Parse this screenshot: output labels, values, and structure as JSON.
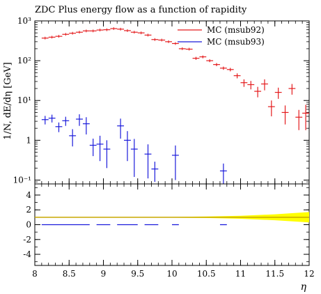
{
  "chart_data": {
    "type": "scatter",
    "title": "ZDC Plus energy flow as a function of rapidity",
    "xlabel": "η",
    "ylabel": "1/N, dE/dη [GeV]",
    "xlim": [
      8,
      12
    ],
    "ylim": [
      0.08,
      1000
    ],
    "yscale": "log",
    "x_ticks": [
      "8",
      "8.5",
      "9",
      "9.5",
      "10",
      "10.5",
      "11",
      "11.5",
      "12"
    ],
    "y_ticks": [
      {
        "value": 0.1,
        "label": "10⁻¹"
      },
      {
        "value": 1,
        "label": "1"
      },
      {
        "value": 10,
        "label": "10¹"
      },
      {
        "value": 100,
        "label": "10²"
      },
      {
        "value": 1000,
        "label": "10³"
      }
    ],
    "legend_position": "top-right",
    "series": [
      {
        "name": "MC (msub92)",
        "color": "#e41a1c",
        "points": [
          {
            "x": 8.15,
            "y": 370,
            "ey": [
              0,
              0
            ]
          },
          {
            "x": 8.25,
            "y": 390,
            "ey": [
              0,
              0
            ]
          },
          {
            "x": 8.35,
            "y": 410,
            "ey": [
              0,
              0
            ]
          },
          {
            "x": 8.45,
            "y": 460,
            "ey": [
              0,
              0
            ]
          },
          {
            "x": 8.55,
            "y": 490,
            "ey": [
              0,
              0
            ]
          },
          {
            "x": 8.65,
            "y": 520,
            "ey": [
              0,
              0
            ]
          },
          {
            "x": 8.75,
            "y": 560,
            "ey": [
              0,
              0
            ]
          },
          {
            "x": 8.85,
            "y": 560,
            "ey": [
              0,
              0
            ]
          },
          {
            "x": 8.95,
            "y": 590,
            "ey": [
              0,
              0
            ]
          },
          {
            "x": 9.05,
            "y": 600,
            "ey": [
              0,
              0
            ]
          },
          {
            "x": 9.15,
            "y": 640,
            "ey": [
              0,
              0
            ]
          },
          {
            "x": 9.25,
            "y": 620,
            "ey": [
              0,
              0
            ]
          },
          {
            "x": 9.35,
            "y": 570,
            "ey": [
              0,
              0
            ]
          },
          {
            "x": 9.45,
            "y": 520,
            "ey": [
              0,
              0
            ]
          },
          {
            "x": 9.55,
            "y": 500,
            "ey": [
              0,
              0
            ]
          },
          {
            "x": 9.65,
            "y": 440,
            "ey": [
              0,
              0
            ]
          },
          {
            "x": 9.75,
            "y": 340,
            "ey": [
              0,
              0
            ]
          },
          {
            "x": 9.85,
            "y": 330,
            "ey": [
              0,
              0
            ]
          },
          {
            "x": 9.95,
            "y": 300,
            "ey": [
              0,
              0
            ]
          },
          {
            "x": 10.05,
            "y": 270,
            "ey": [
              0,
              0
            ]
          },
          {
            "x": 10.15,
            "y": 200,
            "ey": [
              0,
              0
            ]
          },
          {
            "x": 10.25,
            "y": 195,
            "ey": [
              0,
              0
            ]
          },
          {
            "x": 10.35,
            "y": 115,
            "ey": [
              10,
              10
            ]
          },
          {
            "x": 10.45,
            "y": 125,
            "ey": [
              10,
              10
            ]
          },
          {
            "x": 10.55,
            "y": 100,
            "ey": [
              8,
              8
            ]
          },
          {
            "x": 10.65,
            "y": 80,
            "ey": [
              7,
              7
            ]
          },
          {
            "x": 10.75,
            "y": 65,
            "ey": [
              6,
              6
            ]
          },
          {
            "x": 10.85,
            "y": 60,
            "ey": [
              6,
              6
            ]
          },
          {
            "x": 10.95,
            "y": 42,
            "ey": [
              6,
              6
            ]
          },
          {
            "x": 11.05,
            "y": 28,
            "ey": [
              6,
              6
            ]
          },
          {
            "x": 11.15,
            "y": 25,
            "ey": [
              6,
              6
            ]
          },
          {
            "x": 11.25,
            "y": 17,
            "ey": [
              5,
              5
            ]
          },
          {
            "x": 11.35,
            "y": 26,
            "ey": [
              8,
              8
            ]
          },
          {
            "x": 11.45,
            "y": 7,
            "ey": [
              3,
              3
            ]
          },
          {
            "x": 11.55,
            "y": 16,
            "ey": [
              5,
              5
            ]
          },
          {
            "x": 11.65,
            "y": 5,
            "ey": [
              2.5,
              2.5
            ]
          },
          {
            "x": 11.75,
            "y": 20,
            "ey": [
              6,
              6
            ]
          },
          {
            "x": 11.85,
            "y": 3.8,
            "ey": [
              2,
              2
            ]
          },
          {
            "x": 11.95,
            "y": 4.8,
            "ey": [
              3,
              3
            ]
          }
        ]
      },
      {
        "name": "MC (msub93)",
        "color": "#1a1adb",
        "points": [
          {
            "x": 8.15,
            "y": 3.3,
            "ey": [
              0.8,
              0.8
            ]
          },
          {
            "x": 8.25,
            "y": 3.6,
            "ey": [
              0.8,
              0.8
            ]
          },
          {
            "x": 8.35,
            "y": 2.2,
            "ey": [
              0.6,
              0.6
            ]
          },
          {
            "x": 8.45,
            "y": 3.1,
            "ey": [
              0.8,
              0.8
            ]
          },
          {
            "x": 8.55,
            "y": 1.3,
            "ey": [
              0.6,
              0.6
            ]
          },
          {
            "x": 8.65,
            "y": 3.4,
            "ey": [
              1.1,
              1.1
            ]
          },
          {
            "x": 8.75,
            "y": 2.6,
            "ey": [
              1.2,
              1.2
            ]
          },
          {
            "x": 8.85,
            "y": 0.75,
            "ey": [
              0.35,
              0.35
            ]
          },
          {
            "x": 8.95,
            "y": 0.8,
            "ey": [
              0.5,
              0.5
            ]
          },
          {
            "x": 9.05,
            "y": 0.6,
            "ey": [
              0.4,
              0.4
            ]
          },
          {
            "x": 9.25,
            "y": 2.3,
            "ey": [
              1.2,
              1.2
            ]
          },
          {
            "x": 9.35,
            "y": 1.0,
            "ey": [
              0.7,
              0.7
            ]
          },
          {
            "x": 9.45,
            "y": 0.6,
            "ey": [
              0.48,
              0.48
            ]
          },
          {
            "x": 9.65,
            "y": 0.45,
            "ey": [
              0.34,
              0.34
            ]
          },
          {
            "x": 9.75,
            "y": 0.19,
            "ey": [
              0.1,
              0.1
            ]
          },
          {
            "x": 10.05,
            "y": 0.42,
            "ey": [
              0.32,
              0.32
            ]
          },
          {
            "x": 10.75,
            "y": 0.17,
            "ey": [
              0.09,
              0.09
            ]
          }
        ]
      }
    ],
    "ratio_panel": {
      "ylim": [
        -5.5,
        5.5
      ],
      "y_ticks": [
        -4,
        -2,
        0,
        2,
        4
      ],
      "reference_value": 1,
      "reference_color": "#000000",
      "band_color": "#ffff00",
      "line_color": "#c8a800",
      "band": [
        {
          "x": 8.0,
          "half": 0.03
        },
        {
          "x": 10.0,
          "half": 0.05
        },
        {
          "x": 10.5,
          "half": 0.1
        },
        {
          "x": 11.0,
          "half": 0.2
        },
        {
          "x": 11.5,
          "half": 0.4
        },
        {
          "x": 12.0,
          "half": 0.7
        }
      ],
      "series2_ratio": {
        "color": "#1a1adb",
        "segments": [
          [
            8.1,
            8.8
          ],
          [
            8.9,
            9.1
          ],
          [
            9.2,
            9.5
          ],
          [
            9.6,
            9.8
          ],
          [
            10.0,
            10.1
          ],
          [
            10.7,
            10.8
          ]
        ],
        "value": 0.0
      }
    }
  }
}
